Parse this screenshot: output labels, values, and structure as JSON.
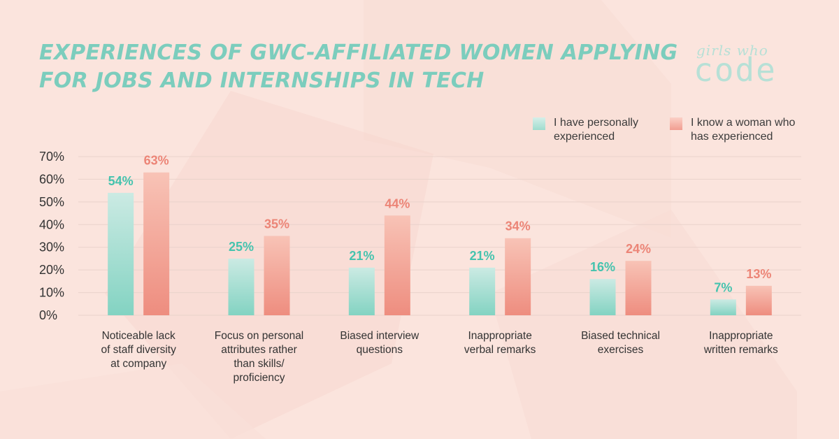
{
  "title_lines": [
    "EXPERIENCES OF GWC-AFFILIATED WOMEN APPLYING",
    "FOR JOBS AND INTERNSHIPS IN TECH"
  ],
  "logo": {
    "text_top": "girls who",
    "text_bottom": "code"
  },
  "colors": {
    "teal": "#83d3c2",
    "teal_light": "#cbeae3",
    "teal_label": "#45c3ae",
    "coral": "#ee8d7f",
    "coral_light": "#f8c3b6",
    "coral_label": "#ec8577",
    "axis_text": "#333333",
    "grid": "#e9d2cb",
    "background": "#fbe4dd"
  },
  "legend": [
    {
      "label": "I have personally experienced"
    },
    {
      "label": "I know a woman who has experienced"
    }
  ],
  "chart_data": {
    "type": "bar",
    "title": "EXPERIENCES OF GWC-AFFILIATED WOMEN APPLYING FOR JOBS AND INTERNSHIPS IN TECH",
    "categories": [
      [
        "Noticeable lack",
        "of staff diversity",
        "at company"
      ],
      [
        "Focus on personal",
        "attributes rather",
        "than skills/",
        "proficiency"
      ],
      [
        "Biased interview",
        "questions"
      ],
      [
        "Inappropriate",
        "verbal remarks"
      ],
      [
        "Biased technical",
        "exercises"
      ],
      [
        "Inappropriate",
        "written remarks"
      ]
    ],
    "series": [
      {
        "name": "I have personally experienced",
        "values": [
          54,
          25,
          21,
          21,
          16,
          7
        ],
        "labels": [
          "54%",
          "25%",
          "21%",
          "21%",
          "16%",
          "7%"
        ]
      },
      {
        "name": "I know a woman who has experienced",
        "values": [
          63,
          35,
          44,
          34,
          24,
          13
        ],
        "labels": [
          "63%",
          "35%",
          "44%",
          "34%",
          "24%",
          "13%"
        ]
      }
    ],
    "yticks": [
      "0%",
      "10%",
      "20%",
      "30%",
      "40%",
      "50%",
      "60%",
      "70%"
    ],
    "ylim": [
      0,
      70
    ],
    "grid": true,
    "legend_position": "top-right"
  }
}
